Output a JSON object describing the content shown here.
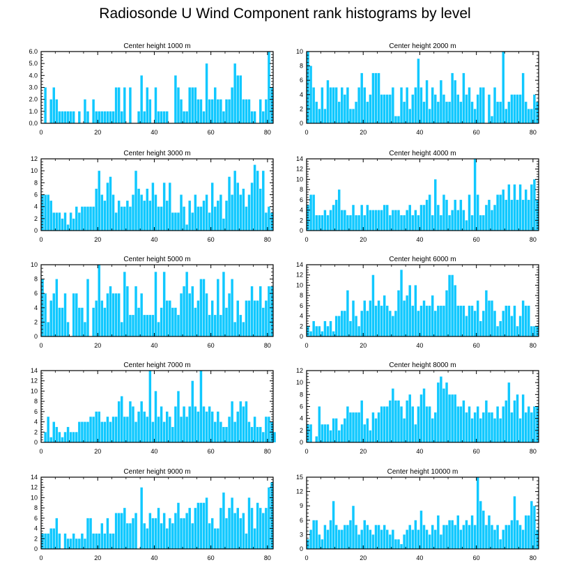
{
  "title": "Radiosonde U Wind Component rank histograms by level",
  "bar_color": "#10C8FF",
  "chart_data": [
    {
      "type": "bar",
      "title": "Center height 1000 m",
      "xlim": [
        0,
        82
      ],
      "ylim": [
        0,
        6
      ],
      "xticks": [
        0,
        20,
        40,
        60,
        80
      ],
      "yticks": [
        0,
        1,
        2,
        3,
        4,
        5,
        6
      ],
      "ytick_labels": [
        "0.0",
        "1.0",
        "2.0",
        "3.0",
        "4.0",
        "5.0",
        "6.0"
      ],
      "values": [
        0,
        3,
        0,
        2,
        3,
        2,
        1,
        1,
        1,
        1,
        1,
        1,
        0,
        1,
        0,
        2,
        1,
        0,
        2,
        1,
        1,
        1,
        1,
        1,
        1,
        1,
        3,
        3,
        1,
        3,
        0,
        3,
        0,
        0,
        1,
        4,
        1,
        3,
        2,
        0,
        3,
        1,
        1,
        1,
        1,
        0,
        0,
        4,
        3,
        2,
        1,
        1,
        3,
        3,
        3,
        2,
        2,
        1,
        5,
        2,
        2,
        3,
        2,
        2,
        1,
        2,
        2,
        3,
        5,
        4,
        4,
        2,
        2,
        2,
        1,
        1,
        0,
        2,
        1,
        2,
        6,
        3
      ]
    },
    {
      "type": "bar",
      "title": "Center height 2000 m",
      "xlim": [
        0,
        82
      ],
      "ylim": [
        0,
        10
      ],
      "xticks": [
        0,
        20,
        40,
        60,
        80
      ],
      "yticks": [
        0,
        2,
        4,
        6,
        8,
        10
      ],
      "ytick_labels": [
        "0",
        "2",
        "4",
        "6",
        "8",
        "10"
      ],
      "values": [
        10,
        8,
        5,
        3,
        2,
        5,
        2,
        6,
        5,
        5,
        5,
        3,
        5,
        4,
        5,
        2,
        2,
        3,
        5,
        7,
        5,
        3,
        4,
        7,
        7,
        7,
        4,
        4,
        4,
        4,
        5,
        1,
        1,
        5,
        3,
        5,
        2,
        4,
        5,
        9,
        5,
        3,
        6,
        2,
        5,
        4,
        3,
        6,
        4,
        3,
        3,
        7,
        6,
        4,
        3,
        7,
        4,
        5,
        3,
        2,
        4,
        5,
        5,
        0,
        4,
        1,
        5,
        3,
        3,
        10,
        2,
        3,
        4,
        4,
        4,
        4,
        7,
        3,
        2,
        2,
        4,
        3
      ]
    },
    {
      "type": "bar",
      "title": "Center height 3000 m",
      "xlim": [
        0,
        82
      ],
      "ylim": [
        0,
        12
      ],
      "xticks": [
        0,
        20,
        40,
        60,
        80
      ],
      "yticks": [
        0,
        2,
        4,
        6,
        8,
        10,
        12
      ],
      "ytick_labels": [
        "0",
        "2",
        "4",
        "6",
        "8",
        "10",
        "12"
      ],
      "values": [
        6,
        6,
        6,
        5,
        3,
        3,
        3,
        2,
        3,
        1,
        3,
        2,
        4,
        3,
        4,
        4,
        4,
        4,
        4,
        7,
        10,
        6,
        5,
        8,
        9,
        6,
        3,
        5,
        4,
        4,
        5,
        4,
        6,
        10,
        7,
        6,
        5,
        7,
        5,
        8,
        6,
        4,
        4,
        8,
        5,
        8,
        3,
        3,
        3,
        6,
        4,
        1,
        5,
        3,
        6,
        4,
        4,
        5,
        6,
        3,
        8,
        4,
        5,
        6,
        2,
        5,
        9,
        6,
        10,
        8,
        6,
        7,
        4,
        6,
        8,
        11,
        10,
        7,
        10,
        3,
        4,
        3
      ]
    },
    {
      "type": "bar",
      "title": "Center height 4000 m",
      "xlim": [
        0,
        82
      ],
      "ylim": [
        0,
        14
      ],
      "xticks": [
        0,
        20,
        40,
        60,
        80
      ],
      "yticks": [
        0,
        2,
        4,
        6,
        8,
        10,
        12,
        14
      ],
      "ytick_labels": [
        "0",
        "2",
        "4",
        "6",
        "8",
        "10",
        "12",
        "14"
      ],
      "values": [
        5,
        7,
        7,
        3,
        3,
        3,
        4,
        3,
        4,
        5,
        6,
        8,
        4,
        4,
        3,
        3,
        5,
        3,
        3,
        5,
        3,
        5,
        4,
        4,
        4,
        4,
        4,
        5,
        5,
        3,
        4,
        4,
        4,
        3,
        3,
        4,
        5,
        3,
        4,
        3,
        5,
        5,
        6,
        7,
        3,
        10,
        5,
        3,
        7,
        6,
        3,
        4,
        6,
        4,
        6,
        4,
        2,
        7,
        3,
        14,
        7,
        3,
        3,
        5,
        6,
        4,
        5,
        7,
        7,
        8,
        6,
        9,
        6,
        9,
        6,
        9,
        6,
        8,
        6,
        9,
        10,
        6
      ]
    },
    {
      "type": "bar",
      "title": "Center height 5000 m",
      "xlim": [
        0,
        82
      ],
      "ylim": [
        0,
        10
      ],
      "xticks": [
        0,
        20,
        40,
        60,
        80
      ],
      "yticks": [
        0,
        2,
        4,
        6,
        8,
        10
      ],
      "ytick_labels": [
        "0",
        "2",
        "4",
        "6",
        "8",
        "10"
      ],
      "values": [
        8,
        6,
        2,
        5,
        6,
        8,
        4,
        4,
        6,
        2,
        0,
        6,
        6,
        4,
        4,
        2,
        8,
        0,
        4,
        5,
        10,
        5,
        4,
        6,
        7,
        6,
        6,
        6,
        2,
        9,
        7,
        3,
        3,
        7,
        4,
        6,
        3,
        3,
        3,
        3,
        9,
        2,
        4,
        9,
        5,
        5,
        4,
        4,
        3,
        6,
        7,
        9,
        6,
        7,
        4,
        5,
        8,
        8,
        6,
        3,
        5,
        3,
        8,
        3,
        9,
        4,
        6,
        8,
        2,
        5,
        3,
        2,
        5,
        5,
        7,
        5,
        5,
        7,
        4,
        5,
        7,
        7
      ]
    },
    {
      "type": "bar",
      "title": "Center height 6000 m",
      "xlim": [
        0,
        82
      ],
      "ylim": [
        0,
        14
      ],
      "xticks": [
        0,
        20,
        40,
        60,
        80
      ],
      "yticks": [
        0,
        2,
        4,
        6,
        8,
        10,
        12,
        14
      ],
      "ytick_labels": [
        "0",
        "2",
        "4",
        "6",
        "8",
        "10",
        "12",
        "14"
      ],
      "values": [
        2,
        1,
        3,
        2,
        2,
        1,
        3,
        2,
        3,
        1,
        4,
        4,
        5,
        5,
        9,
        3,
        7,
        4,
        2,
        5,
        7,
        5,
        7,
        12,
        6,
        7,
        6,
        8,
        6,
        5,
        4,
        5,
        9,
        13,
        7,
        8,
        10,
        6,
        10,
        5,
        6,
        7,
        6,
        6,
        8,
        5,
        6,
        6,
        6,
        9,
        12,
        12,
        10,
        6,
        6,
        6,
        4,
        6,
        6,
        5,
        7,
        3,
        5,
        9,
        7,
        7,
        5,
        2,
        3,
        5,
        6,
        6,
        4,
        6,
        2,
        4,
        7,
        6,
        6,
        2,
        2,
        2
      ]
    },
    {
      "type": "bar",
      "title": "Center height 7000 m",
      "xlim": [
        0,
        82
      ],
      "ylim": [
        0,
        14
      ],
      "xticks": [
        0,
        20,
        40,
        60,
        80
      ],
      "yticks": [
        0,
        2,
        4,
        6,
        8,
        10,
        12,
        14
      ],
      "ytick_labels": [
        "0",
        "2",
        "4",
        "6",
        "8",
        "10",
        "12",
        "14"
      ],
      "values": [
        0,
        2,
        5,
        1,
        4,
        3,
        2,
        1,
        2,
        3,
        2,
        2,
        2,
        4,
        4,
        4,
        4,
        5,
        5,
        6,
        6,
        4,
        4,
        5,
        4,
        5,
        5,
        8,
        9,
        5,
        5,
        8,
        7,
        4,
        6,
        8,
        6,
        5,
        14,
        4,
        10,
        5,
        7,
        4,
        6,
        5,
        3,
        7,
        10,
        5,
        7,
        5,
        7,
        12,
        7,
        6,
        14,
        7,
        6,
        7,
        6,
        4,
        6,
        4,
        3,
        3,
        5,
        8,
        4,
        6,
        8,
        7,
        8,
        4,
        3,
        5,
        3,
        3,
        2,
        5,
        5,
        4,
        2
      ]
    },
    {
      "type": "bar",
      "title": "Center height 8000 m",
      "xlim": [
        0,
        82
      ],
      "ylim": [
        0,
        12
      ],
      "xticks": [
        0,
        20,
        40,
        60,
        80
      ],
      "yticks": [
        0,
        2,
        4,
        6,
        8,
        10,
        12
      ],
      "ytick_labels": [
        "0",
        "2",
        "4",
        "6",
        "8",
        "10",
        "12"
      ],
      "values": [
        3,
        3,
        0,
        1,
        6,
        3,
        3,
        3,
        2,
        4,
        4,
        2,
        3,
        4,
        6,
        5,
        5,
        5,
        5,
        7,
        3,
        4,
        2,
        5,
        4,
        5,
        6,
        6,
        6,
        7,
        9,
        7,
        7,
        6,
        4,
        7,
        8,
        6,
        3,
        6,
        8,
        9,
        6,
        6,
        4,
        5,
        10,
        11,
        9,
        10,
        8,
        8,
        8,
        6,
        6,
        7,
        5,
        6,
        4,
        5,
        6,
        4,
        5,
        7,
        5,
        5,
        4,
        6,
        4,
        6,
        7,
        10,
        5,
        7,
        8,
        4,
        8,
        5,
        6,
        5,
        6,
        6
      ]
    },
    {
      "type": "bar",
      "title": "Center height 9000 m",
      "xlim": [
        0,
        82
      ],
      "ylim": [
        0,
        14
      ],
      "xticks": [
        0,
        20,
        40,
        60,
        80
      ],
      "yticks": [
        0,
        2,
        4,
        6,
        8,
        10,
        12,
        14
      ],
      "ytick_labels": [
        "0",
        "2",
        "4",
        "6",
        "8",
        "10",
        "12",
        "14"
      ],
      "values": [
        3,
        3,
        3,
        4,
        4,
        6,
        3,
        0,
        3,
        2,
        2,
        3,
        2,
        2,
        3,
        2,
        6,
        6,
        3,
        3,
        3,
        5,
        3,
        6,
        3,
        3,
        7,
        7,
        7,
        8,
        5,
        5,
        6,
        7,
        0,
        12,
        5,
        4,
        7,
        6,
        6,
        8,
        5,
        7,
        4,
        6,
        5,
        7,
        9,
        6,
        6,
        7,
        8,
        5,
        8,
        9,
        9,
        9,
        10,
        5,
        6,
        4,
        4,
        8,
        11,
        6,
        8,
        10,
        7,
        8,
        6,
        7,
        3,
        10,
        8,
        4,
        9,
        8,
        7,
        8,
        12,
        13
      ]
    },
    {
      "type": "bar",
      "title": "Center height 10000 m",
      "xlim": [
        0,
        82
      ],
      "ylim": [
        0,
        15
      ],
      "xticks": [
        0,
        20,
        40,
        60,
        80
      ],
      "yticks": [
        0,
        3,
        6,
        9,
        12,
        15
      ],
      "ytick_labels": [
        "0",
        "3",
        "6",
        "9",
        "12",
        "15"
      ],
      "values": [
        2,
        4,
        6,
        6,
        3,
        2,
        5,
        4,
        6,
        10,
        5,
        4,
        4,
        5,
        5,
        6,
        9,
        5,
        3,
        4,
        6,
        5,
        4,
        3,
        5,
        5,
        4,
        5,
        4,
        3,
        4,
        2,
        2,
        1,
        3,
        4,
        5,
        4,
        6,
        4,
        8,
        5,
        4,
        3,
        5,
        4,
        7,
        3,
        5,
        5,
        6,
        6,
        5,
        7,
        4,
        5,
        6,
        5,
        7,
        5,
        15,
        10,
        8,
        5,
        7,
        5,
        4,
        5,
        2,
        4,
        5,
        5,
        6,
        11,
        6,
        5,
        4,
        7,
        7,
        10,
        9,
        4
      ]
    }
  ]
}
